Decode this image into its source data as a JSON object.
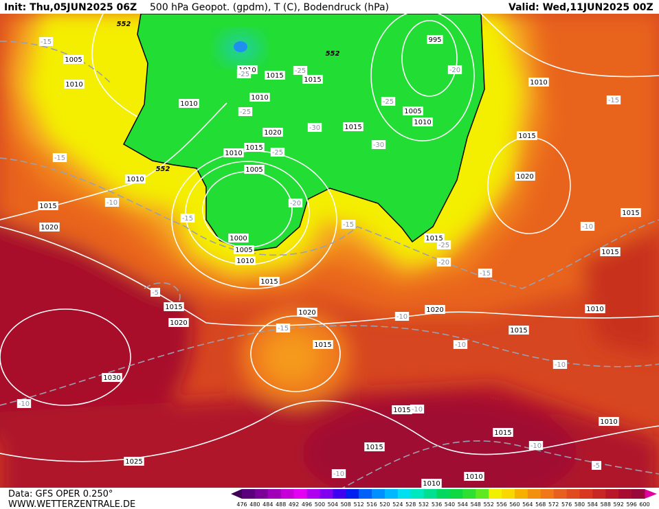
{
  "header": {
    "init": "Init: Thu,05JUN2025 06Z",
    "title": "500 hPa Geopot. (gpdm), T (C), Bodendruck (hPa)",
    "valid": "Valid: Wed,11JUN2025 00Z"
  },
  "footer": {
    "source": "Data: GFS OPER 0.250°",
    "site": "WWW.WETTERZENTRALE.DE"
  },
  "map": {
    "isobar_labels": [
      1005,
      1010,
      1010,
      1010,
      1015,
      1015,
      1010,
      1020,
      1015,
      1010,
      1005,
      1010,
      1015,
      1020,
      1000,
      1005,
      1010,
      1015,
      1015,
      1020,
      1020,
      1015,
      1030,
      1025,
      1015,
      1015,
      1015,
      1010,
      1010,
      1010,
      1015,
      1020,
      1010,
      1015,
      1015,
      1020,
      1015,
      1010,
      1005,
      1010,
      1015,
      995,
      1015
    ],
    "temperature_labels": [
      -15,
      -15,
      -10,
      -15,
      -25,
      -25,
      -25,
      -25,
      -30,
      -30,
      -25,
      -20,
      -15,
      -25,
      -20,
      -15,
      -10,
      -15,
      -20,
      -5,
      -15,
      -10,
      -10,
      -10,
      -10,
      -10,
      -10,
      -5,
      -10
    ],
    "geopotential_labels": [
      552,
      552,
      552
    ]
  },
  "colorbar": {
    "ticks": [
      476,
      480,
      484,
      488,
      492,
      496,
      500,
      504,
      508,
      512,
      516,
      520,
      524,
      528,
      532,
      536,
      540,
      544,
      548,
      552,
      556,
      560,
      564,
      568,
      572,
      576,
      580,
      584,
      588,
      592,
      596,
      600
    ],
    "colors": [
      "#5a007a",
      "#7a0098",
      "#a000b8",
      "#c800d8",
      "#e400f0",
      "#b000f0",
      "#8000f0",
      "#4000f0",
      "#0020f0",
      "#0060f8",
      "#0090ff",
      "#00b8ff",
      "#00e0f0",
      "#00e8c0",
      "#00e090",
      "#00d860",
      "#10d840",
      "#30e030",
      "#60e820",
      "#f0f000",
      "#f8d800",
      "#f8b000",
      "#f49010",
      "#f07818",
      "#e86020",
      "#e04c20",
      "#d83820",
      "#c82824",
      "#b81828",
      "#a80c30",
      "#980838"
    ]
  }
}
